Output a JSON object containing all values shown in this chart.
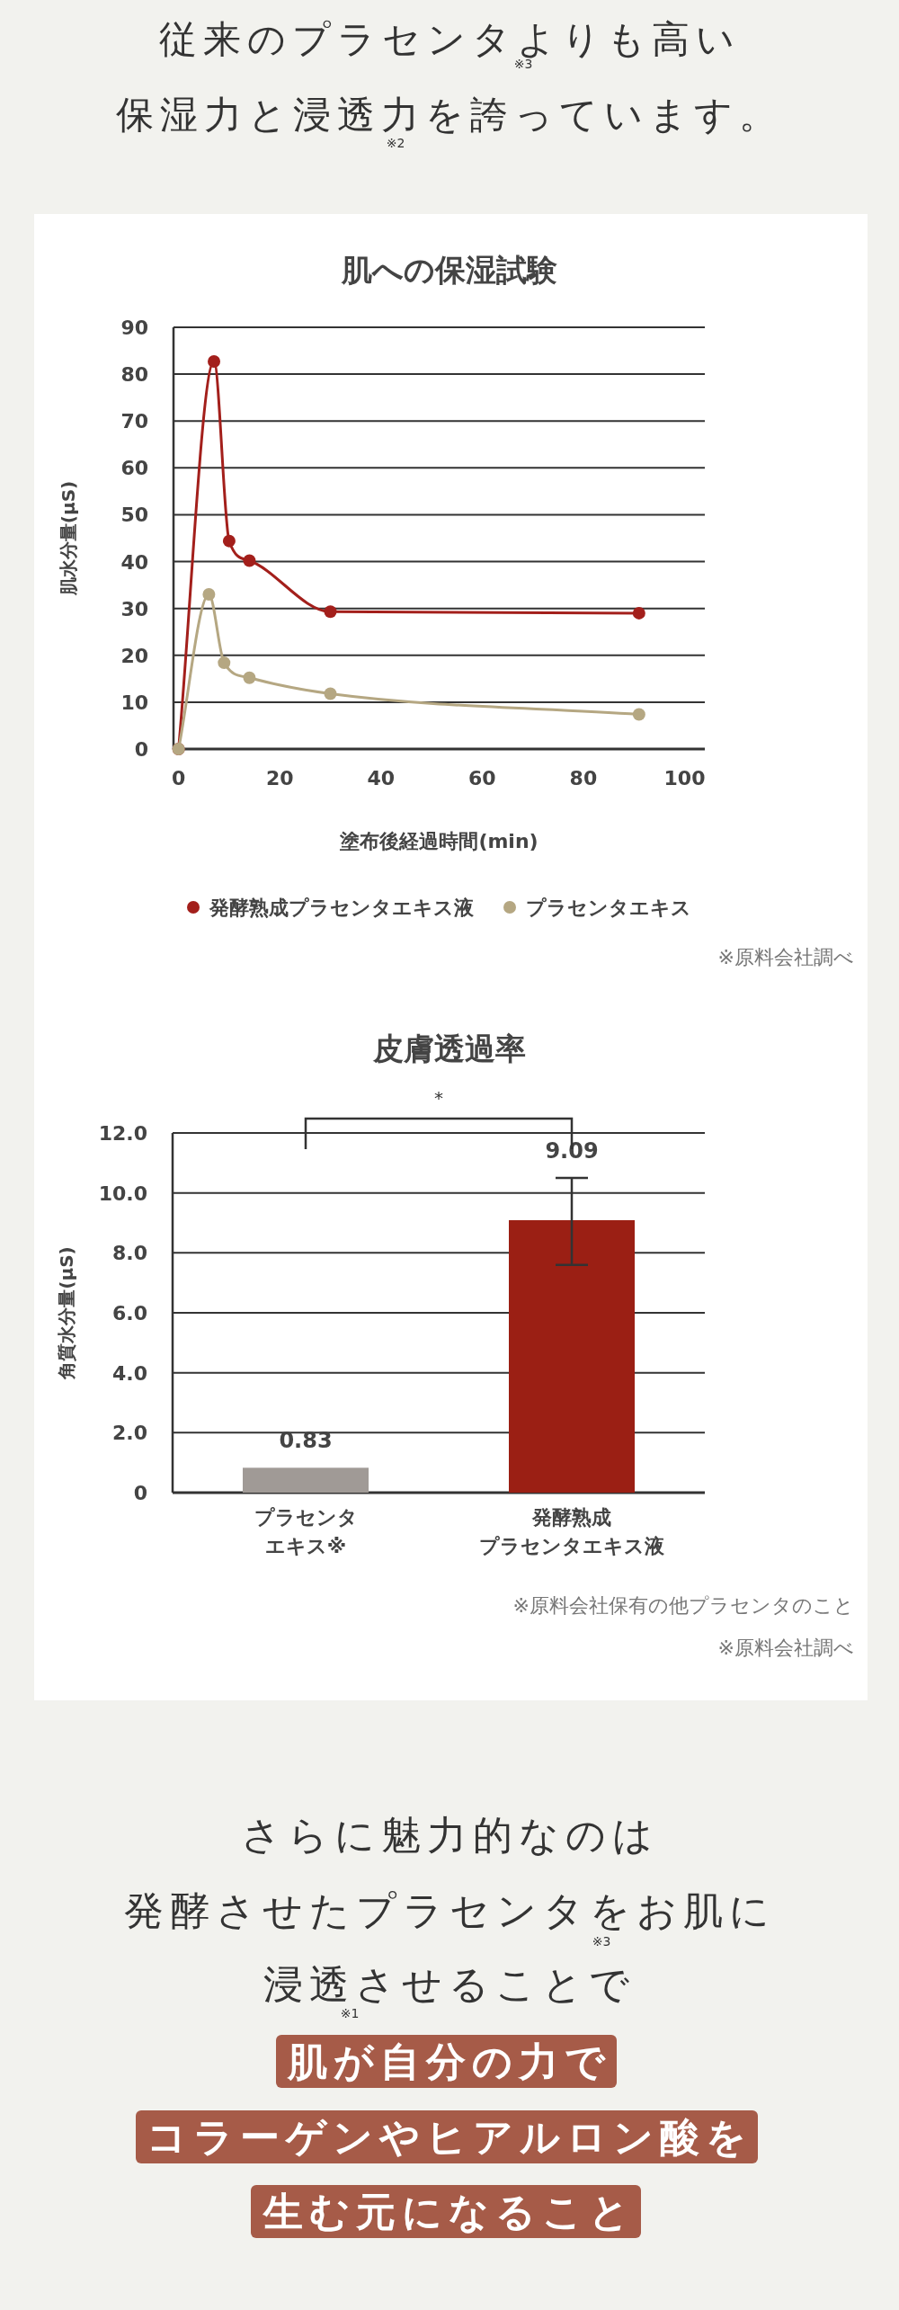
{
  "chart_data": [
    {
      "type": "line",
      "title": "肌への保湿試験",
      "xlabel": "塗布後経過時間(min)",
      "ylabel": "肌水分量(μS)",
      "xlim": [
        -1,
        104
      ],
      "xticks": [
        0,
        20,
        40,
        60,
        80,
        100
      ],
      "ylim": [
        0,
        90
      ],
      "yticks": [
        0,
        10,
        20,
        30,
        40,
        50,
        60,
        70,
        80,
        90
      ],
      "grid": "y",
      "legend": "bottom",
      "marker": "circle",
      "line_style": "solid",
      "series": [
        {
          "name": "発酵熟成プラセンタエキス液",
          "color": "#a31f1b",
          "x": [
            0,
            7,
            10,
            14,
            30,
            91
          ],
          "values": [
            0,
            82.7,
            44.4,
            40.2,
            29.3,
            29
          ]
        },
        {
          "name": "プラセンタエキス",
          "color": "#b5a782",
          "x": [
            0,
            6,
            9,
            14,
            30,
            91
          ],
          "values": [
            0,
            33,
            18.4,
            15.2,
            11.8,
            7.4
          ]
        }
      ],
      "annotations": [
        "従来のプラセンタよりも高い",
        "保湿力と浸透力を誇っています。",
        "※3",
        "※2",
        "※原料会社調べ"
      ]
    },
    {
      "type": "bar",
      "title": "皮膚透過率",
      "ylabel": "角質水分量(μS)",
      "categories": [
        "プラセンタエキス※",
        "発酵熟成プラセンタエキス液"
      ],
      "values": [
        0.83,
        9.09
      ],
      "colors": [
        "#a09a96",
        "#9b1f14"
      ],
      "errors": [
        null,
        [
          7.6,
          10.5
        ]
      ],
      "value_labels": [
        "0.83",
        "9.09"
      ],
      "ylim": [
        0,
        12
      ],
      "yticks": [
        0,
        {
          "value": 2,
          "label": "2.0"
        },
        {
          "value": 4,
          "label": "4.0"
        },
        {
          "value": 6,
          "label": "6.0"
        },
        {
          "value": 8,
          "label": "8.0"
        },
        {
          "value": 10,
          "label": "10.0"
        },
        {
          "value": 12,
          "label": "12.0"
        }
      ],
      "grid": "y",
      "annotations": [
        "*",
        "※原料会社保有の他プラセンタのこと",
        "※原料会社調べ",
        "さらに魅力的なのは",
        "発酵させたプラセンタをお肌に",
        "浸透させることで",
        "肌が自分の力で",
        "コラーゲンやヒアルロン酸を",
        "生む元になること",
        "※3",
        "※1"
      ]
    }
  ]
}
